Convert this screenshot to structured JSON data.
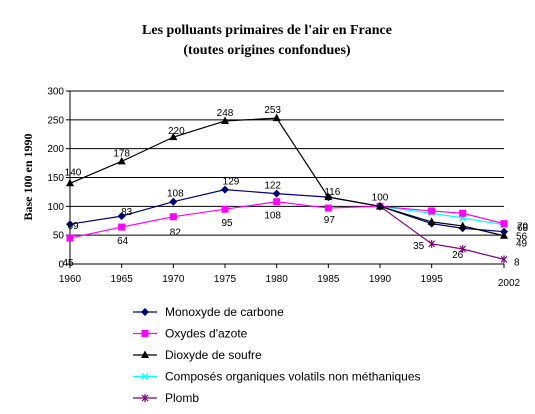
{
  "chart_data": {
    "type": "line",
    "title": "Les polluants primaires de l'air en France",
    "subtitle": "(toutes origines confondues)",
    "xlabel": "",
    "ylabel": "Base 100 en 1990",
    "xlim": [
      1960,
      2002
    ],
    "ylim": [
      0,
      300
    ],
    "x_ticks": [
      "1960",
      "1965",
      "1970",
      "1975",
      "1980",
      "1985",
      "1990",
      "1995",
      "2002"
    ],
    "y_ticks": [
      "0",
      "50",
      "100",
      "150",
      "200",
      "250",
      "300"
    ],
    "grid": "horizontal",
    "legend_position": "bottom",
    "series": [
      {
        "name": "Monoxyde de carbone",
        "color": "#000080",
        "marker": "diamond",
        "x": [
          1960,
          1965,
          1970,
          1975,
          1980,
          1985,
          1990,
          1995,
          1998,
          2002
        ],
        "values": [
          69,
          83,
          108,
          129,
          122,
          116,
          100,
          70,
          62,
          56
        ],
        "labels": [
          {
            "i": 0,
            "text": "69"
          },
          {
            "i": 1,
            "text": "83"
          },
          {
            "i": 2,
            "text": "108"
          },
          {
            "i": 3,
            "text": "129"
          },
          {
            "i": 4,
            "text": "122"
          },
          {
            "i": 9,
            "text": "56"
          }
        ]
      },
      {
        "name": "Oxydes d'azote",
        "color": "#FF00FF",
        "marker": "square",
        "x": [
          1960,
          1965,
          1970,
          1975,
          1980,
          1985,
          1990,
          1995,
          1998,
          2002
        ],
        "values": [
          45,
          64,
          82,
          95,
          108,
          97,
          100,
          92,
          88,
          70
        ],
        "labels": [
          {
            "i": 0,
            "text": "45"
          },
          {
            "i": 1,
            "text": "64"
          },
          {
            "i": 2,
            "text": "82"
          },
          {
            "i": 3,
            "text": "95"
          },
          {
            "i": 4,
            "text": "108"
          },
          {
            "i": 5,
            "text": "97"
          },
          {
            "i": 9,
            "text": "70"
          }
        ]
      },
      {
        "name": "Dioxyde de soufre",
        "color": "#000000",
        "marker": "triangle",
        "x": [
          1960,
          1965,
          1970,
          1975,
          1980,
          1985,
          1990,
          1995,
          1998,
          2002
        ],
        "values": [
          140,
          178,
          220,
          248,
          253,
          116,
          100,
          73,
          66,
          49
        ],
        "labels": [
          {
            "i": 0,
            "text": "140"
          },
          {
            "i": 1,
            "text": "178"
          },
          {
            "i": 2,
            "text": "220"
          },
          {
            "i": 3,
            "text": "248"
          },
          {
            "i": 4,
            "text": "253"
          },
          {
            "i": 5,
            "text": "116"
          },
          {
            "i": 6,
            "text": "100"
          },
          {
            "i": 9,
            "text": "49"
          }
        ]
      },
      {
        "name": "Composés organiques volatils non méthaniques",
        "color": "#00FFFF",
        "marker": "x",
        "x": [
          1990,
          1995,
          1998,
          2002
        ],
        "values": [
          100,
          88,
          80,
          68
        ],
        "labels": [
          {
            "i": 3,
            "text": "68"
          }
        ]
      },
      {
        "name": "Plomb",
        "color": "#800080",
        "marker": "asterisk",
        "x": [
          1990,
          1995,
          1998,
          2002
        ],
        "values": [
          100,
          35,
          26,
          8
        ],
        "labels": [
          {
            "i": 1,
            "text": "35"
          },
          {
            "i": 2,
            "text": "26"
          },
          {
            "i": 3,
            "text": "8"
          }
        ]
      }
    ]
  }
}
